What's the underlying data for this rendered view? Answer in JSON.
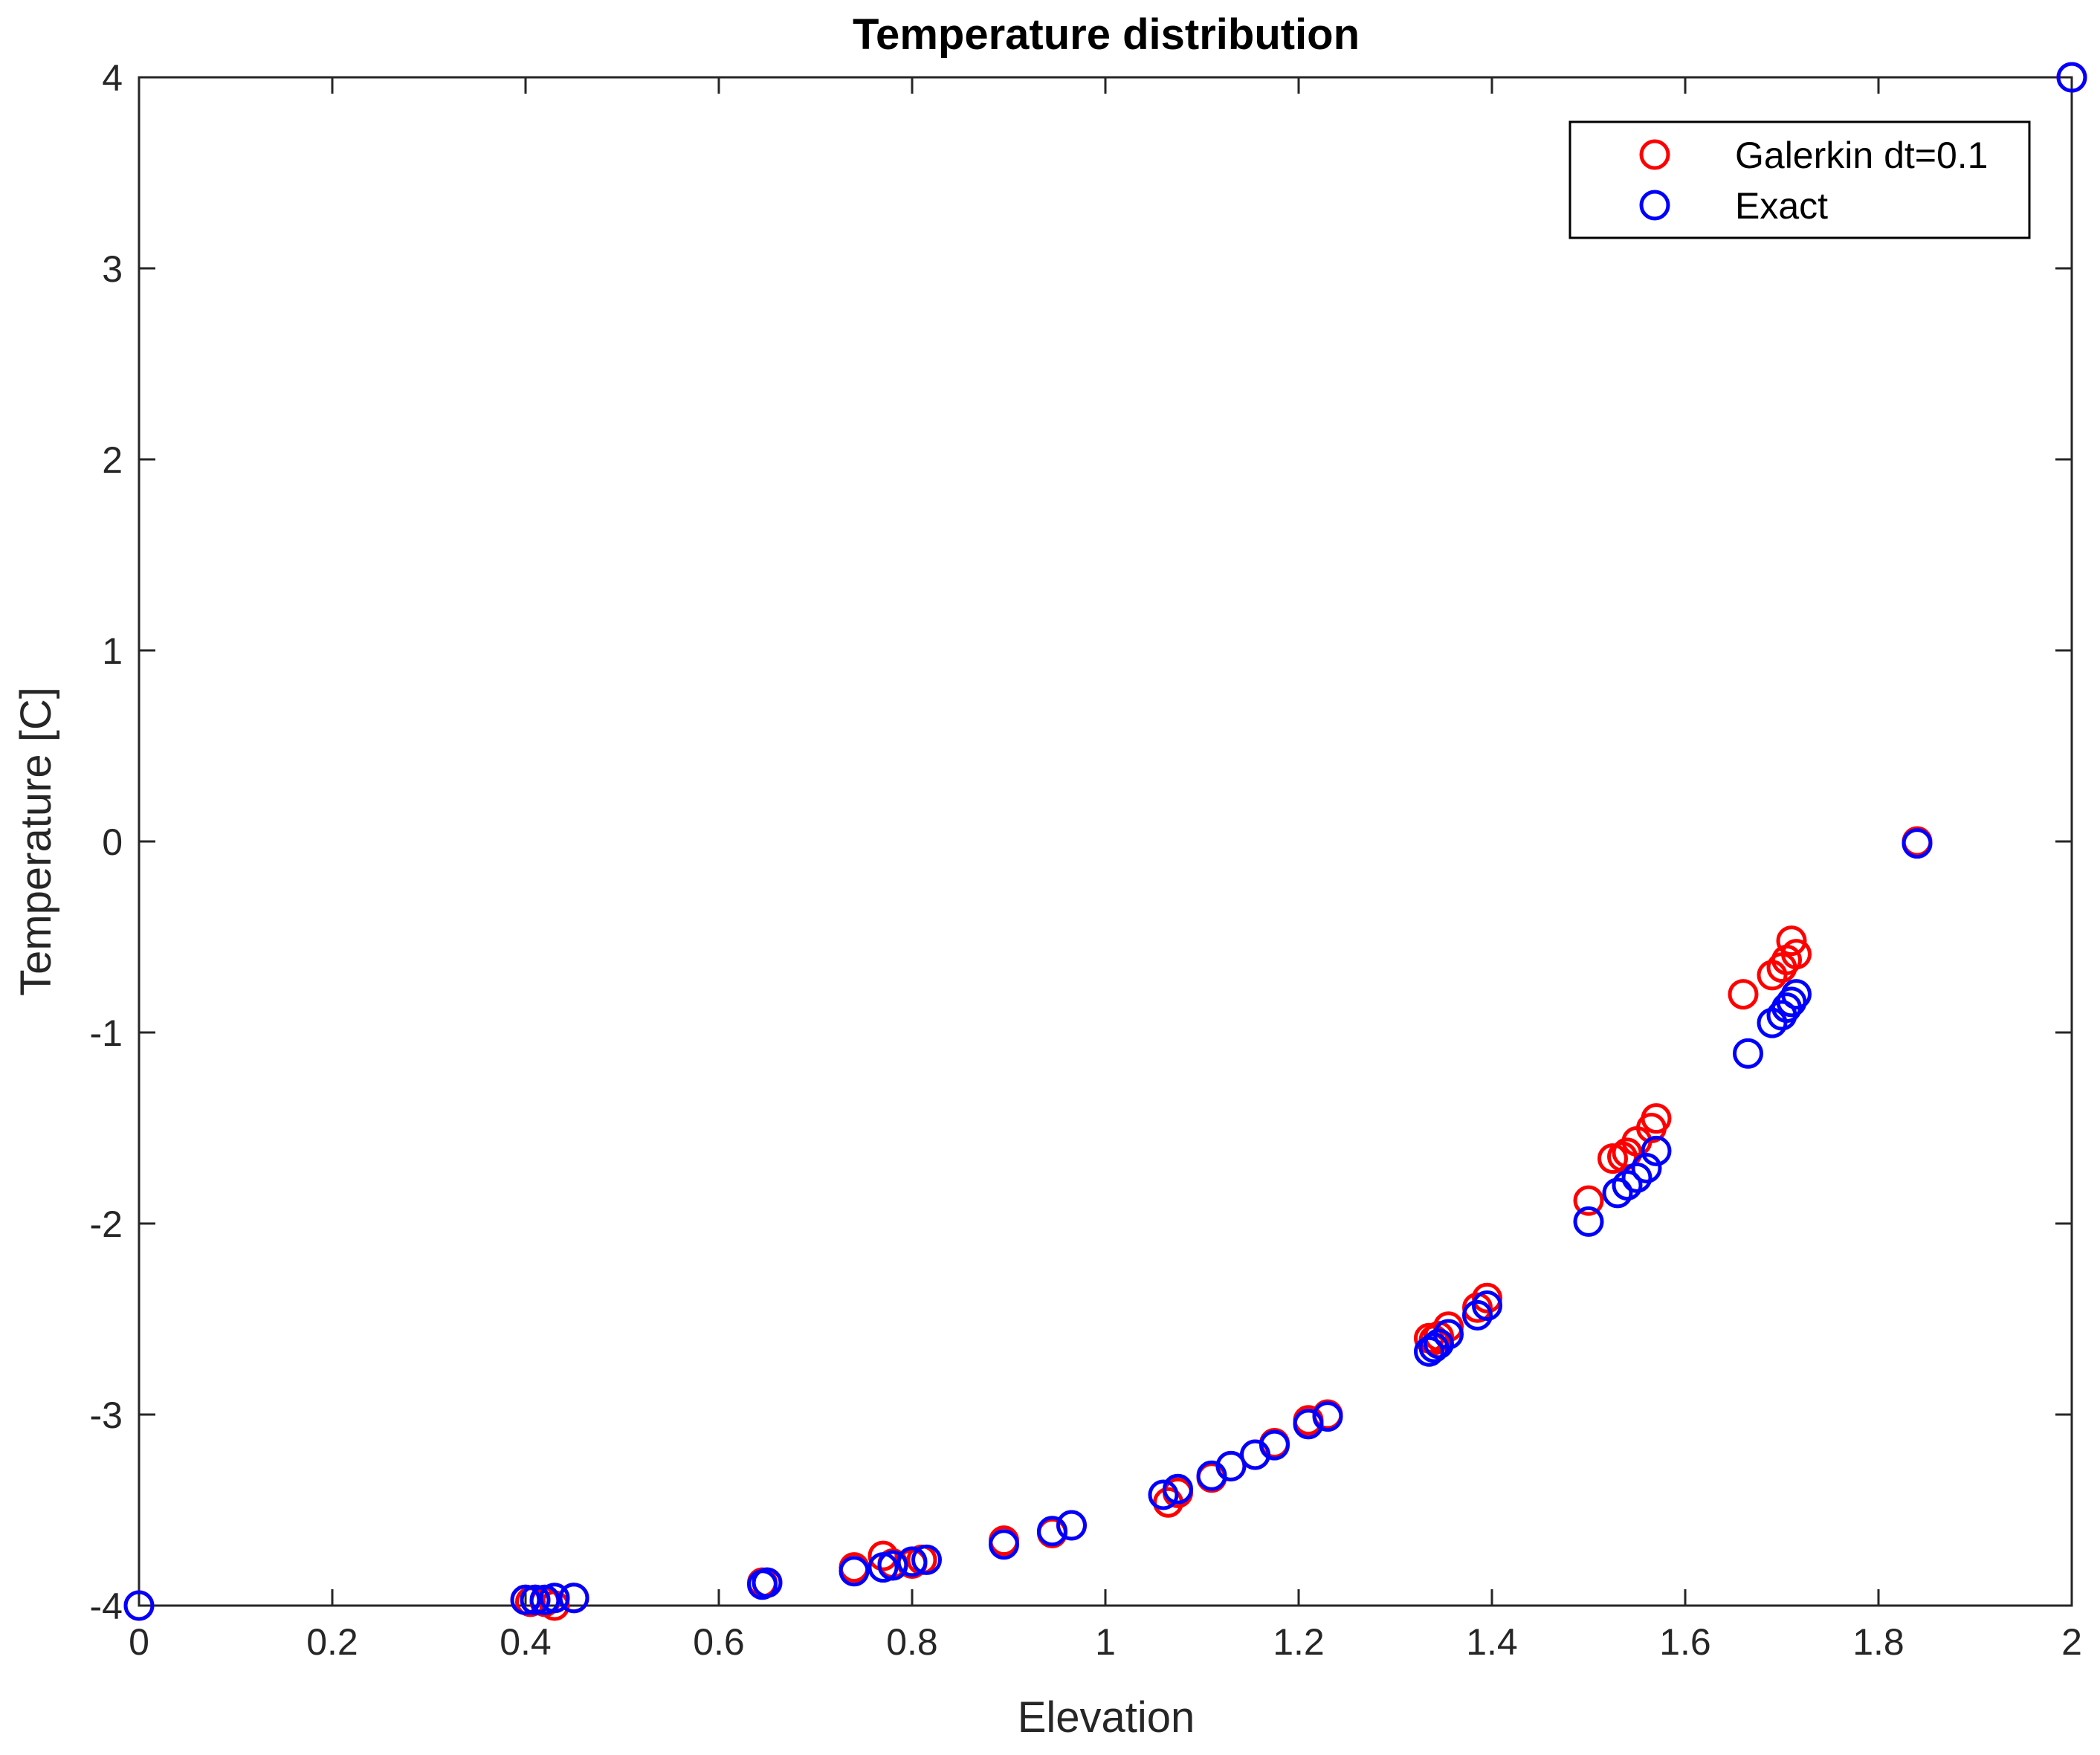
{
  "chart_data": {
    "type": "scatter",
    "title": "Temperature distribution",
    "xlabel": "Elevation",
    "ylabel": "Temperature [C]",
    "xlim": [
      0,
      2
    ],
    "ylim": [
      -4,
      4
    ],
    "xticks": [
      0,
      0.2,
      0.4,
      0.6,
      0.8,
      1,
      1.2,
      1.4,
      1.6,
      1.8,
      2
    ],
    "xtick_labels": [
      "0",
      "0.2",
      "0.4",
      "0.6",
      "0.8",
      "1",
      "1.2",
      "1.4",
      "1.6",
      "1.8",
      "2"
    ],
    "yticks": [
      -4,
      -3,
      -2,
      -1,
      0,
      1,
      2,
      3,
      4
    ],
    "ytick_labels": [
      "-4",
      "-3",
      "-2",
      "-1",
      "0",
      "1",
      "2",
      "3",
      "4"
    ],
    "grid": false,
    "legend_position": "top-right",
    "series": [
      {
        "name": "Galerkin dt=0.1",
        "color": "#ff0000",
        "marker": "circle-open",
        "x": [
          0.0,
          0.4,
          0.405,
          0.41,
          0.42,
          0.43,
          0.45,
          0.645,
          0.65,
          0.74,
          0.77,
          0.78,
          0.8,
          0.81,
          0.895,
          0.945,
          0.965,
          1.065,
          1.075,
          1.11,
          1.13,
          1.155,
          1.175,
          1.21,
          1.23,
          1.335,
          1.34,
          1.345,
          1.355,
          1.385,
          1.395,
          1.5,
          1.525,
          1.535,
          1.54,
          1.55,
          1.565,
          1.57,
          1.66,
          1.69,
          1.7,
          1.705,
          1.71,
          1.715,
          1.84,
          2.0
        ],
        "y": [
          -4.0,
          -3.97,
          -3.98,
          -3.97,
          -3.98,
          -4.0,
          -3.96,
          -3.88,
          -3.88,
          -3.8,
          -3.74,
          -3.78,
          -3.78,
          -3.76,
          -3.66,
          -3.62,
          -3.58,
          -3.46,
          -3.41,
          -3.33,
          -3.27,
          -3.21,
          -3.15,
          -3.03,
          -3.0,
          -2.6,
          -2.61,
          -2.59,
          -2.54,
          -2.44,
          -2.39,
          -1.88,
          -1.66,
          -1.65,
          -1.63,
          -1.57,
          -1.5,
          -1.45,
          -0.8,
          -0.7,
          -0.66,
          -0.62,
          -0.52,
          -0.59,
          0.0,
          4.0
        ]
      },
      {
        "name": "Exact",
        "color": "#0000ff",
        "marker": "circle-open",
        "x": [
          0.0,
          0.4,
          0.41,
          0.42,
          0.43,
          0.45,
          0.645,
          0.65,
          0.74,
          0.77,
          0.78,
          0.8,
          0.815,
          0.895,
          0.945,
          0.965,
          1.06,
          1.075,
          1.11,
          1.13,
          1.155,
          1.175,
          1.21,
          1.23,
          1.335,
          1.34,
          1.345,
          1.355,
          1.385,
          1.395,
          1.5,
          1.53,
          1.54,
          1.55,
          1.56,
          1.57,
          1.665,
          1.69,
          1.7,
          1.705,
          1.71,
          1.715,
          1.84,
          2.0
        ],
        "y": [
          -4.0,
          -3.97,
          -3.97,
          -3.97,
          -3.96,
          -3.96,
          -3.89,
          -3.88,
          -3.82,
          -3.8,
          -3.79,
          -3.77,
          -3.76,
          -3.68,
          -3.61,
          -3.58,
          -3.42,
          -3.39,
          -3.32,
          -3.27,
          -3.21,
          -3.16,
          -3.05,
          -3.01,
          -2.67,
          -2.65,
          -2.63,
          -2.58,
          -2.48,
          -2.43,
          -1.99,
          -1.84,
          -1.8,
          -1.76,
          -1.71,
          -1.62,
          -1.11,
          -0.95,
          -0.91,
          -0.87,
          -0.84,
          -0.8,
          -0.01,
          4.0
        ]
      }
    ]
  }
}
